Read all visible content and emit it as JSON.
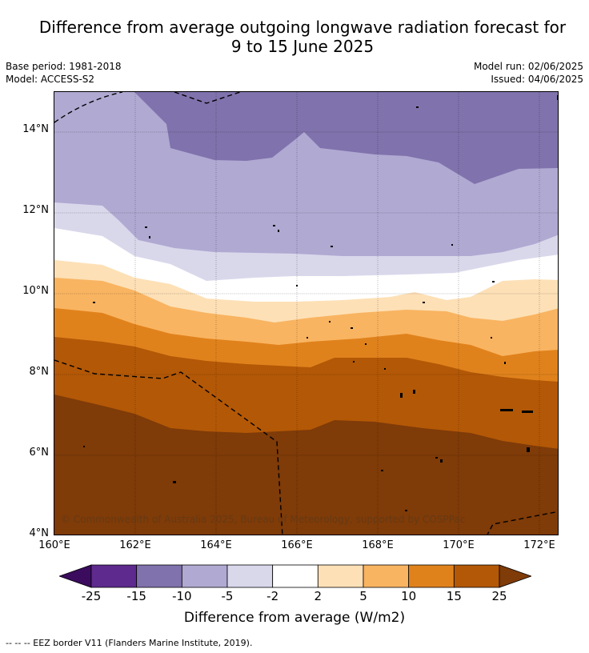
{
  "title_line1": "Difference from average outgoing longwave radiation forecast for",
  "title_line2": "9 to 15 June 2025",
  "base_period": "Base period: 1981-2018",
  "model": "Model: ACCESS-S2",
  "model_run": "Model run: 02/06/2025",
  "issued": "Issued: 04/06/2025",
  "copyright": "© Commonwealth of Australia 2025, Bureau of Meteorology, supported by COSPPac",
  "lat_labels": [
    "14°N",
    "12°N",
    "10°N",
    "8°N",
    "6°N",
    "4°N"
  ],
  "lon_labels": [
    "160°E",
    "162°E",
    "164°E",
    "166°E",
    "168°E",
    "170°E",
    "172°E"
  ],
  "legend": {
    "ticks": [
      "-25",
      "-15",
      "-10",
      "-5",
      "-2",
      "2",
      "5",
      "10",
      "15",
      "25"
    ],
    "colors": [
      "#3b0b5e",
      "#5e2a8e",
      "#8072ac",
      "#b0a9d2",
      "#d9d8eb",
      "#ffffff",
      "#fde0b6",
      "#f9b461",
      "#e0821c",
      "#b35806",
      "#7f3b08"
    ],
    "label": "Difference from average (W/m2)"
  },
  "footnote": "--  --  -- EEZ border V11 (Flanders Marine Institute, 2019)."
}
